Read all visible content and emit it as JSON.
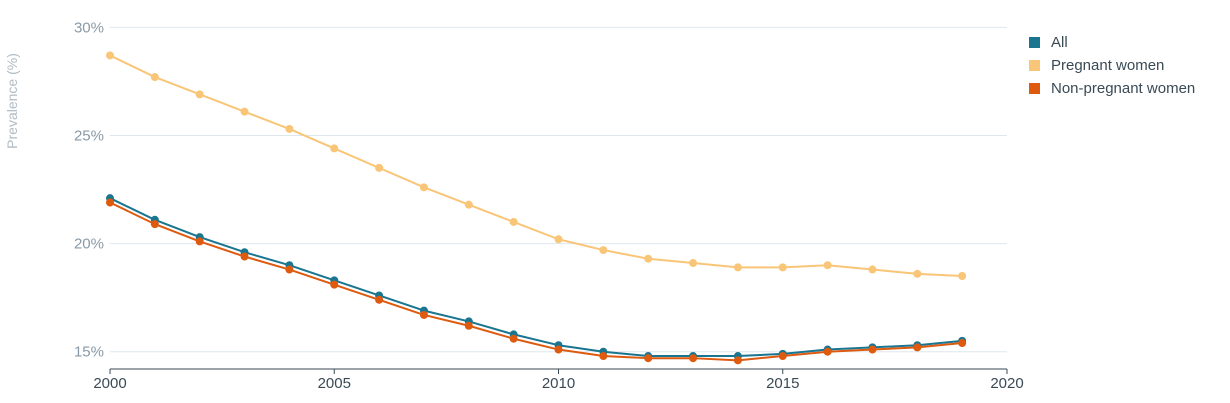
{
  "chart_data": {
    "type": "line",
    "ylabel": "Prevalence (%)",
    "xlabel": "",
    "x_ticks": [
      "2000",
      "2005",
      "2010",
      "2015",
      "2020"
    ],
    "x_tick_values": [
      2000,
      2005,
      2010,
      2015,
      2020
    ],
    "y_ticks": [
      "15%",
      "20%",
      "25%",
      "30%"
    ],
    "y_tick_values": [
      15,
      20,
      25,
      30
    ],
    "xlim": [
      2000,
      2020
    ],
    "ylim": [
      14.2,
      30.2
    ],
    "grid": "horizontal",
    "legend_position": "top-right",
    "x": [
      2000,
      2001,
      2002,
      2003,
      2004,
      2005,
      2006,
      2007,
      2008,
      2009,
      2010,
      2011,
      2012,
      2013,
      2014,
      2015,
      2016,
      2017,
      2018,
      2019
    ],
    "series": [
      {
        "name": "Pregnant women",
        "color": "#f9c577",
        "values": [
          28.7,
          27.7,
          26.9,
          26.1,
          25.3,
          24.4,
          23.5,
          22.6,
          21.8,
          21.0,
          20.2,
          19.7,
          19.3,
          19.1,
          18.9,
          18.9,
          19.0,
          18.8,
          18.6,
          18.5
        ]
      },
      {
        "name": "All",
        "color": "#1a7590",
        "values": [
          22.1,
          21.1,
          20.3,
          19.6,
          19.0,
          18.3,
          17.6,
          16.9,
          16.4,
          15.8,
          15.3,
          15.0,
          14.8,
          14.8,
          14.8,
          14.9,
          15.1,
          15.2,
          15.3,
          15.5
        ]
      },
      {
        "name": "Non-pregnant women",
        "color": "#dd5a0f",
        "values": [
          21.9,
          20.9,
          20.1,
          19.4,
          18.8,
          18.1,
          17.4,
          16.7,
          16.2,
          15.6,
          15.1,
          14.8,
          14.7,
          14.7,
          14.6,
          14.8,
          15.0,
          15.1,
          15.2,
          15.4
        ]
      }
    ],
    "legend_order": [
      "All",
      "Pregnant women",
      "Non-pregnant women"
    ]
  }
}
